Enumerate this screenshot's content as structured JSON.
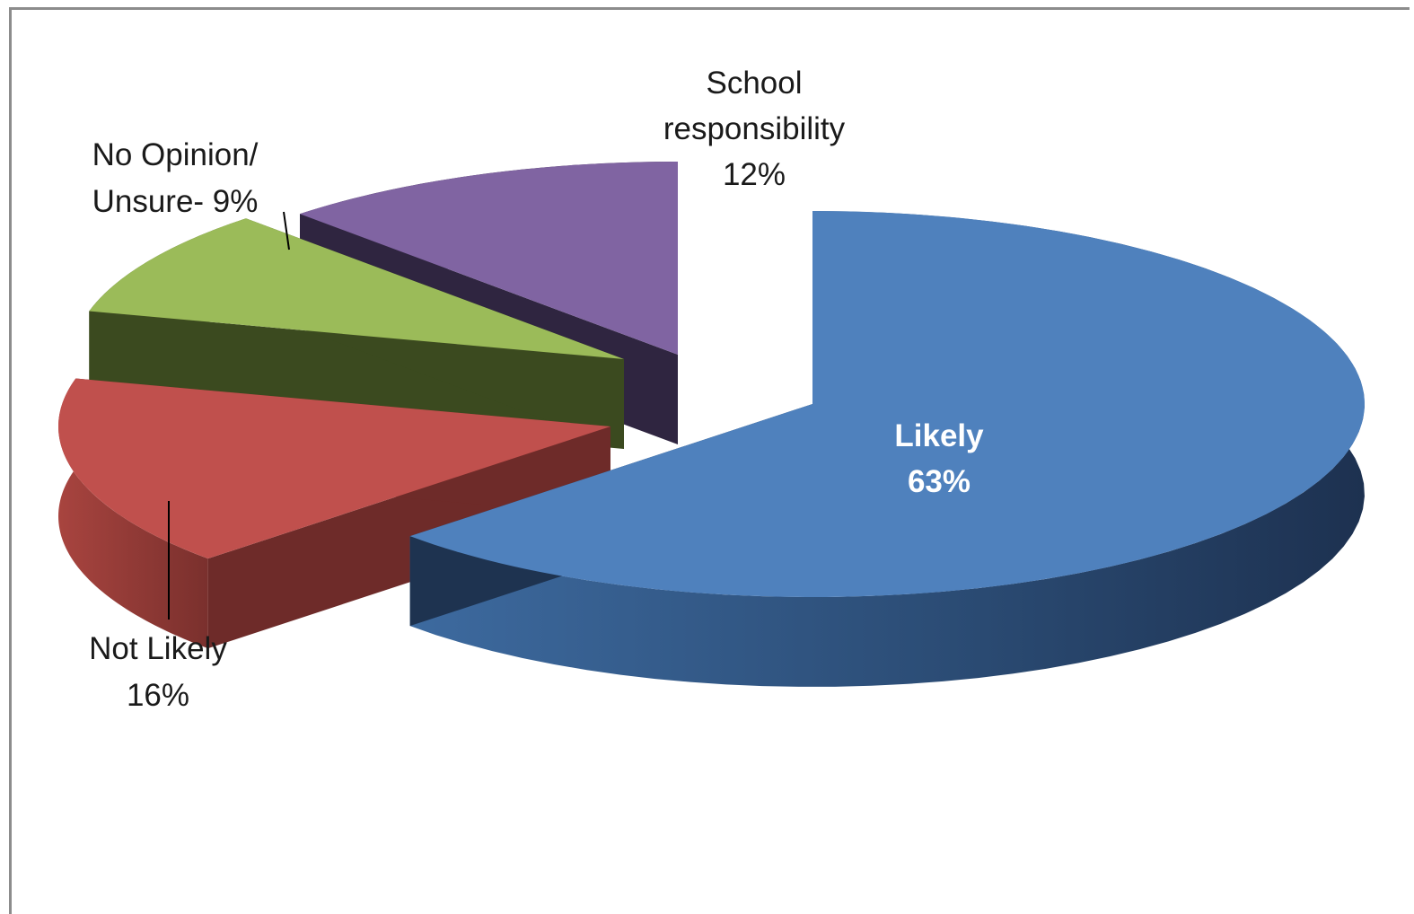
{
  "chart_data": {
    "type": "pie",
    "title": "",
    "slices": [
      {
        "label": "Likely",
        "value": 63,
        "value_text": "63%",
        "color": "#4f81bd",
        "side_light": "#3b6698",
        "side_dark": "#1e3350"
      },
      {
        "label": "Not Likely",
        "value": 16,
        "value_text": "16%",
        "color": "#c0504d",
        "side_light": "#a8443f",
        "side_dark": "#6e2b29"
      },
      {
        "label": "No Opinion/ Unsure- 9%",
        "value": 9,
        "value_text": "",
        "color": "#9bbb59",
        "side_light": "#4a5a22",
        "side_dark": "#3b4a1f"
      },
      {
        "label": "School responsibility",
        "value": 12,
        "value_text": "12%",
        "color": "#8064a2",
        "side_light": "#3e2f4f",
        "side_dark": "#2f2540"
      }
    ],
    "labels": {
      "likely_line1": "Likely",
      "likely_line2": "63%",
      "notlikely_line1": "Not Likely",
      "notlikely_line2": "16%",
      "noopinion_line1": "No Opinion/",
      "noopinion_line2": "Unsure- 9%",
      "school_line1": "School",
      "school_line2": "responsibility",
      "school_line3": "12%"
    },
    "legend": "none",
    "exploded": true
  }
}
